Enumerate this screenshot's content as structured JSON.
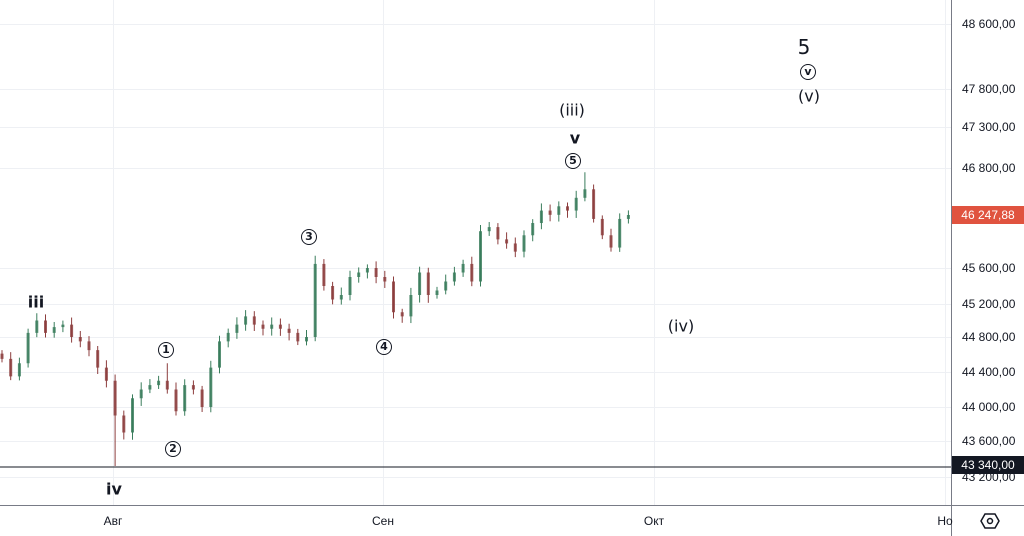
{
  "chart_data": {
    "type": "candlestick",
    "y_scale": "log",
    "grid": true,
    "x_tick_labels": [
      "Авг",
      "Сен",
      "Окт",
      "Но"
    ],
    "y_tick_labels": [
      "48 600,00",
      "47 800,00",
      "47 300,00",
      "46 800,00",
      "45 600,00",
      "45 200,00",
      "44 800,00",
      "44 400,00",
      "44 000,00",
      "43 600,00",
      "43 200,00"
    ],
    "y_ticks": [
      48600,
      47800,
      47300,
      46800,
      45600,
      45200,
      44800,
      44400,
      44000,
      43600,
      43200
    ],
    "closes": [
      44550,
      44350,
      44500,
      44850,
      45000,
      44850,
      44920,
      44950,
      44800,
      44750,
      44650,
      44450,
      44300,
      43900,
      43700,
      44100,
      44200,
      44250,
      44300,
      44200,
      43950,
      44250,
      44200,
      44000,
      44450,
      44750,
      44850,
      44950,
      45050,
      44950,
      44900,
      44950,
      44900,
      44850,
      44750,
      44800,
      45650,
      45400,
      45250,
      45300,
      45500,
      45550,
      45600,
      45500,
      45450,
      45100,
      45050,
      45300,
      45550,
      45300,
      45350,
      45450,
      45550,
      45650,
      45450,
      46050,
      46100,
      45950,
      45900,
      45800,
      46000,
      46150,
      46300,
      46250,
      46350,
      46300,
      46450,
      46550,
      46200,
      46000,
      45850,
      46200,
      46248
    ],
    "notable_extremes": {
      "low": 43340,
      "high_wave3": 45750,
      "high_wave5": 46750,
      "high_wave1": 44500
    },
    "last_price": {
      "label": "46 247,88",
      "value": 46247.88,
      "color": "#e0533f"
    },
    "horizontal_line": {
      "label": "43 340,00",
      "value": 43340,
      "color": "#131722"
    },
    "up_color": "#3a7d5c",
    "down_color": "#8c3d3d",
    "annotations": [
      {
        "text": "iii",
        "style": "plain"
      },
      {
        "text": "iv",
        "style": "plain"
      },
      {
        "text": "1",
        "style": "circle"
      },
      {
        "text": "2",
        "style": "circle"
      },
      {
        "text": "3",
        "style": "circle"
      },
      {
        "text": "4",
        "style": "circle"
      },
      {
        "text": "5",
        "style": "circle"
      },
      {
        "text": "v",
        "style": "plain"
      },
      {
        "text": "(iii)",
        "style": "plain"
      },
      {
        "text": "(iv)",
        "style": "plain"
      },
      {
        "text": "5",
        "style": "large"
      },
      {
        "text": "v",
        "style": "circle"
      },
      {
        "text": "(v)",
        "style": "plain"
      }
    ]
  },
  "icons": {
    "settings": "settings-hexagon-icon"
  }
}
